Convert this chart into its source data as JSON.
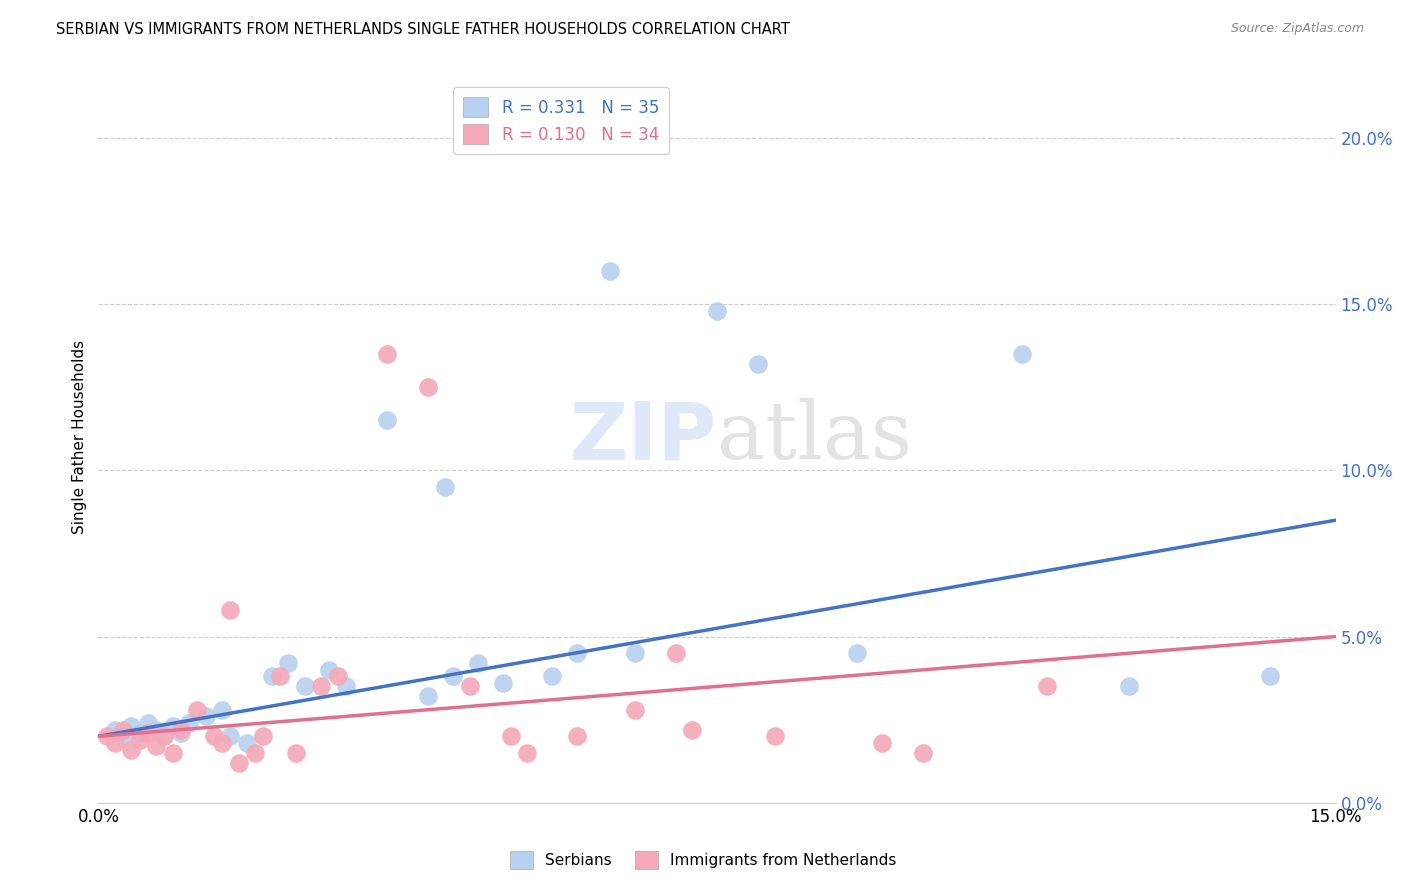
{
  "title": "SERBIAN VS IMMIGRANTS FROM NETHERLANDS SINGLE FATHER HOUSEHOLDS CORRELATION CHART",
  "source": "Source: ZipAtlas.com",
  "ylabel": "Single Father Households",
  "right_ytick_labels": [
    "0.0%",
    "5.0%",
    "10.0%",
    "15.0%",
    "20.0%"
  ],
  "right_ytick_values": [
    0.0,
    5.0,
    10.0,
    15.0,
    20.0
  ],
  "xlim": [
    0.0,
    15.0
  ],
  "ylim": [
    0.0,
    22.0
  ],
  "legend_r1": "R = 0.331   N = 35",
  "legend_r2": "R = 0.130   N = 34",
  "legend_label_serbian": "Serbians",
  "legend_label_netherlands": "Immigrants from Netherlands",
  "serbian_color": "#b8d0f0",
  "serbian_line_color": "#4472c4",
  "netherlands_color": "#f4a8b8",
  "netherlands_line_color": "#e07090",
  "watermark": "ZIPatlas",
  "serbian_points": [
    [
      0.2,
      2.2
    ],
    [
      0.3,
      2.0
    ],
    [
      0.4,
      2.3
    ],
    [
      0.5,
      2.1
    ],
    [
      0.6,
      2.4
    ],
    [
      0.7,
      2.2
    ],
    [
      0.8,
      2.0
    ],
    [
      0.9,
      2.3
    ],
    [
      1.0,
      2.1
    ],
    [
      1.1,
      2.4
    ],
    [
      1.3,
      2.6
    ],
    [
      1.5,
      2.8
    ],
    [
      1.6,
      2.0
    ],
    [
      1.8,
      1.8
    ],
    [
      2.1,
      3.8
    ],
    [
      2.3,
      4.2
    ],
    [
      2.5,
      3.5
    ],
    [
      2.8,
      4.0
    ],
    [
      3.5,
      11.5
    ],
    [
      4.0,
      3.2
    ],
    [
      4.3,
      3.8
    ],
    [
      4.6,
      4.2
    ],
    [
      4.9,
      3.6
    ],
    [
      5.5,
      3.8
    ],
    [
      5.8,
      4.5
    ],
    [
      6.2,
      16.0
    ],
    [
      7.5,
      14.8
    ],
    [
      8.0,
      13.2
    ],
    [
      9.2,
      4.5
    ],
    [
      11.2,
      13.5
    ],
    [
      12.5,
      3.5
    ],
    [
      14.2,
      3.8
    ],
    [
      4.2,
      9.5
    ],
    [
      6.5,
      4.5
    ],
    [
      3.0,
      3.5
    ]
  ],
  "netherlands_points": [
    [
      0.1,
      2.0
    ],
    [
      0.2,
      1.8
    ],
    [
      0.3,
      2.2
    ],
    [
      0.4,
      1.6
    ],
    [
      0.5,
      1.9
    ],
    [
      0.6,
      2.1
    ],
    [
      0.7,
      1.7
    ],
    [
      0.8,
      2.0
    ],
    [
      0.9,
      1.5
    ],
    [
      1.0,
      2.2
    ],
    [
      1.2,
      2.8
    ],
    [
      1.4,
      2.0
    ],
    [
      1.5,
      1.8
    ],
    [
      1.7,
      1.2
    ],
    [
      1.9,
      1.5
    ],
    [
      2.0,
      2.0
    ],
    [
      2.2,
      3.8
    ],
    [
      2.4,
      1.5
    ],
    [
      2.7,
      3.5
    ],
    [
      2.9,
      3.8
    ],
    [
      1.6,
      5.8
    ],
    [
      3.5,
      13.5
    ],
    [
      4.0,
      12.5
    ],
    [
      4.5,
      3.5
    ],
    [
      5.0,
      2.0
    ],
    [
      5.2,
      1.5
    ],
    [
      5.8,
      2.0
    ],
    [
      6.5,
      2.8
    ],
    [
      7.2,
      2.2
    ],
    [
      8.2,
      2.0
    ],
    [
      9.5,
      1.8
    ],
    [
      10.0,
      1.5
    ],
    [
      11.5,
      3.5
    ],
    [
      7.0,
      4.5
    ]
  ],
  "background_color": "#ffffff",
  "grid_color": "#cccccc"
}
